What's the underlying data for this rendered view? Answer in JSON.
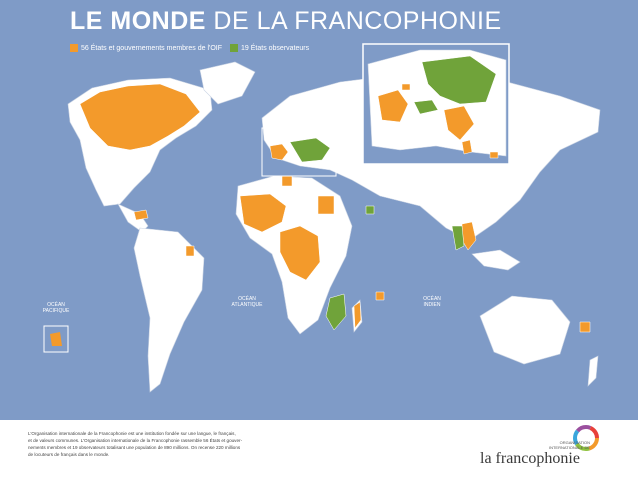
{
  "map": {
    "title_bold": "LE MONDE",
    "title_rest": " DE LA FRANCOPHONIE",
    "legend": {
      "members_label": "56 États et gouvernements membres de l'OIF",
      "observers_label": "19 États observateurs"
    },
    "oceans": {
      "pacific": [
        "OCÉAN",
        "PACIFIQUE"
      ],
      "atlantic": [
        "OCÉAN",
        "ATLANTIQUE"
      ],
      "indian": [
        "OCÉAN",
        "INDIEN"
      ]
    },
    "colors": {
      "ocean": "#7f9bc7",
      "land": "#ffffff",
      "member": "#f39a2b",
      "observer": "#70a33a"
    }
  },
  "footer": {
    "line1": "L'Organisation internationale de la Francophonie est une institution fondée sur une langue, le français,",
    "line2": "et de valeurs communes. L'Organisation internationale de la Francophonie rassemble 56 États et gouver-",
    "line3": "nements membres et 19 observateurs totalisant une population de 890 millions. On recense 220 millions",
    "line4": "de locuteurs de français dans le monde."
  },
  "logo": {
    "small_line1": "ORGANISATION",
    "small_line2": "INTERNATIONALE DE",
    "wordmark": "la francophonie"
  }
}
